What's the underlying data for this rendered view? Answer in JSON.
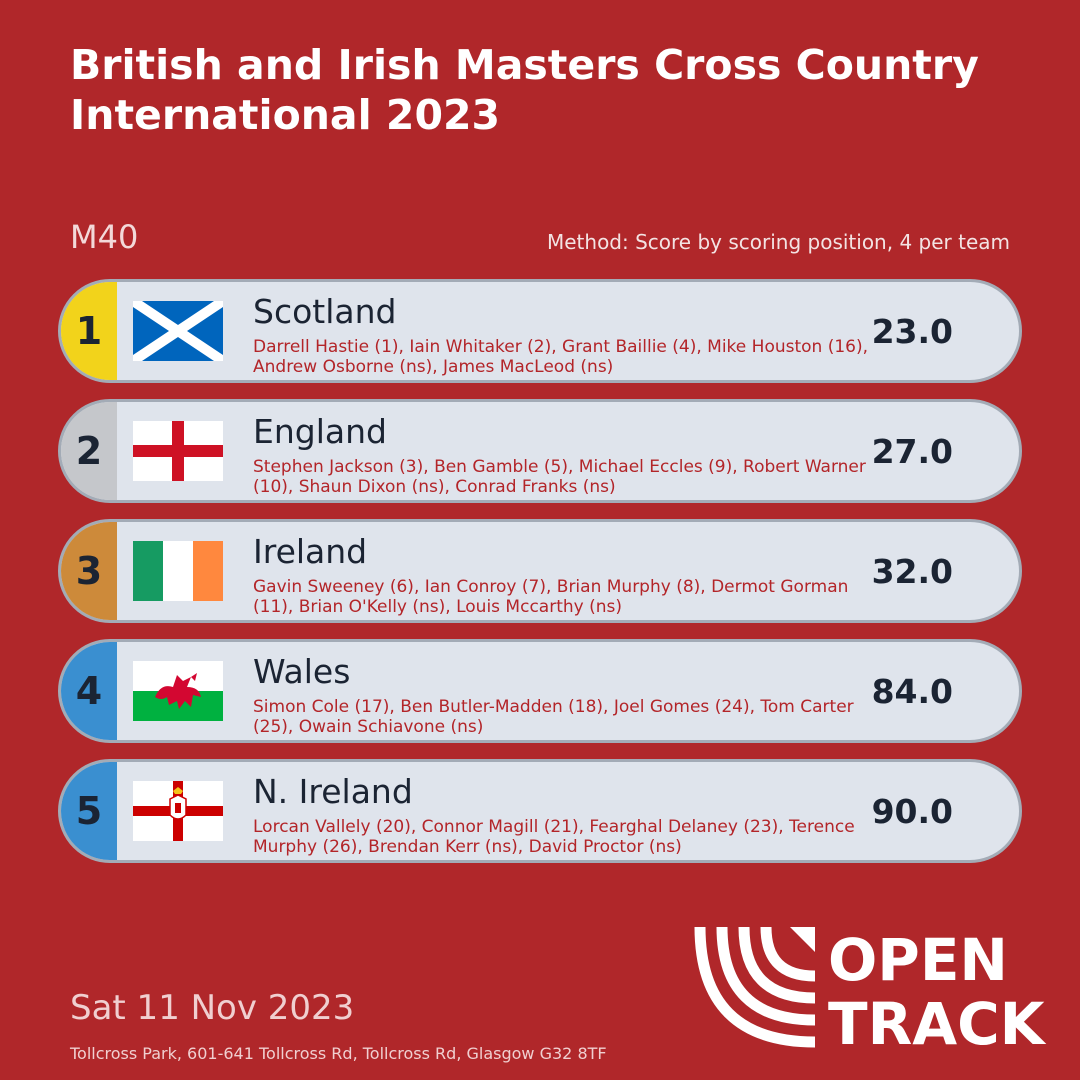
{
  "title": "British and Irish Masters Cross Country International 2023",
  "category": "M40",
  "method": "Method: Score by scoring position, 4 per team",
  "teams": [
    {
      "rank": "1",
      "country": "Scotland",
      "flag": "scotland-flag-icon",
      "rank_color": "#f2d31b",
      "athletes": "Darrell Hastie (1), Iain Whitaker (2), Grant Baillie (4), Mike Houston (16), Andrew Osborne (ns), James MacLeod (ns)",
      "score": "23.0"
    },
    {
      "rank": "2",
      "country": "England",
      "flag": "england-flag-icon",
      "rank_color": "#c5c7cb",
      "athletes": "Stephen Jackson (3), Ben Gamble (5), Michael Eccles (9), Robert Warner (10), Shaun Dixon (ns), Conrad Franks (ns)",
      "score": "27.0"
    },
    {
      "rank": "3",
      "country": "Ireland",
      "flag": "ireland-flag-icon",
      "rank_color": "#cd8a3a",
      "athletes": "Gavin Sweeney (6), Ian Conroy (7), Brian Murphy (8), Dermot Gorman (11), Brian O'Kelly (ns), Louis Mccarthy (ns)",
      "score": "32.0"
    },
    {
      "rank": "4",
      "country": "Wales",
      "flag": "wales-flag-icon",
      "rank_color": "#3a8fd0",
      "athletes": "Simon Cole (17), Ben Butler-Madden (18), Joel Gomes (24), Tom Carter (25), Owain Schiavone (ns)",
      "score": "84.0"
    },
    {
      "rank": "5",
      "country": "N. Ireland",
      "flag": "northern-ireland-flag-icon",
      "rank_color": "#3a8fd0",
      "athletes": "Lorcan Vallely (20), Connor Magill (21), Fearghal Delaney (23), Terence Murphy (26), Brendan Kerr (ns), David Proctor (ns)",
      "score": "90.0"
    }
  ],
  "date": "Sat 11 Nov 2023",
  "venue": "Tollcross Park, 601-641 Tollcross Rd, Tollcross Rd, Glasgow G32 8TF",
  "logo": {
    "line1": "OPEN",
    "line2": "TRACK",
    "icon": "open-track-logo"
  }
}
